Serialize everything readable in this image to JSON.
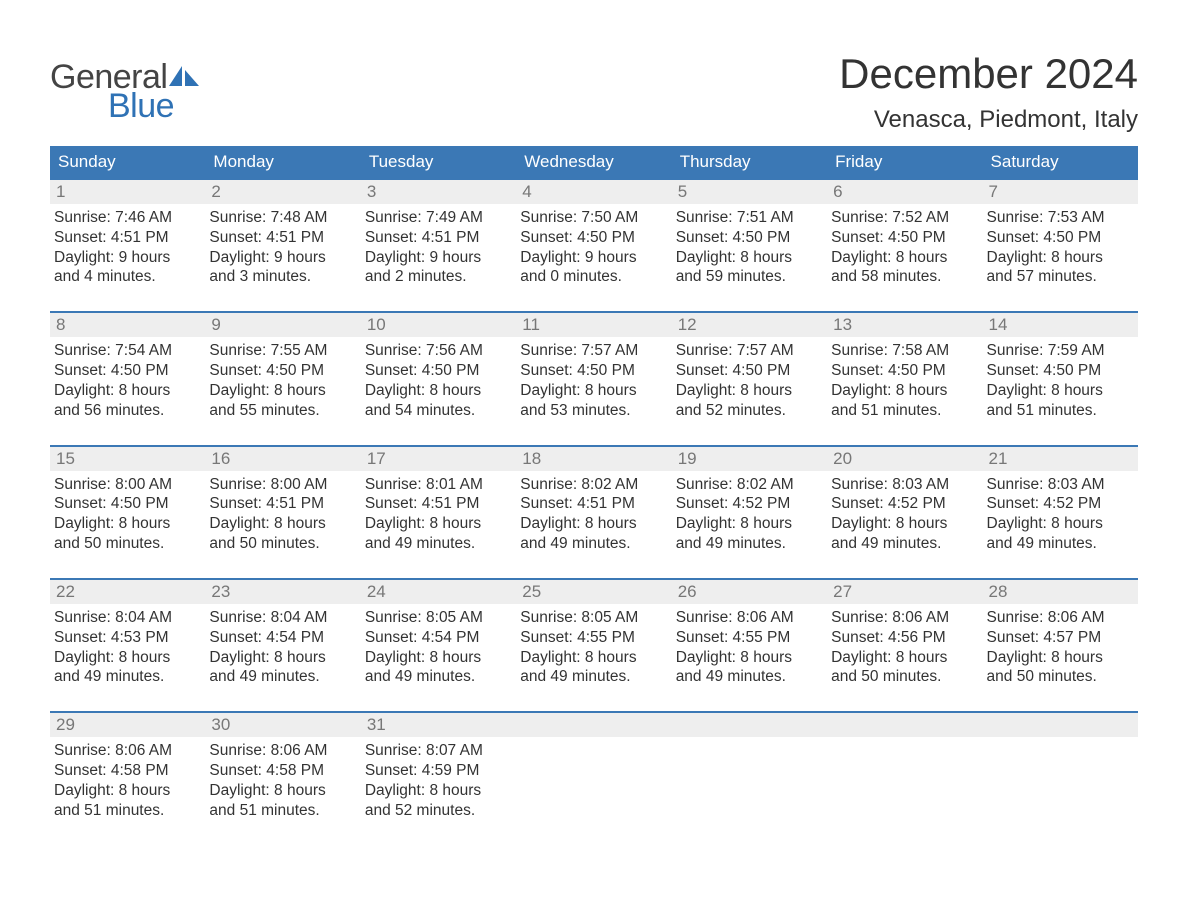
{
  "logo": {
    "text1": "General",
    "text2": "Blue",
    "sail_color": "#2f72b5"
  },
  "colors": {
    "header_bg": "#3b78b5",
    "header_text": "#ffffff",
    "daynum_bg": "#eeeeee",
    "daynum_text": "#777777",
    "body_text": "#333333",
    "week_divider": "#3b78b5",
    "page_bg": "#ffffff"
  },
  "title": "December 2024",
  "location": "Venasca, Piedmont, Italy",
  "weekdays": [
    "Sunday",
    "Monday",
    "Tuesday",
    "Wednesday",
    "Thursday",
    "Friday",
    "Saturday"
  ],
  "weeks": [
    [
      {
        "n": "1",
        "sunrise": "Sunrise: 7:46 AM",
        "sunset": "Sunset: 4:51 PM",
        "d1": "Daylight: 9 hours",
        "d2": "and 4 minutes."
      },
      {
        "n": "2",
        "sunrise": "Sunrise: 7:48 AM",
        "sunset": "Sunset: 4:51 PM",
        "d1": "Daylight: 9 hours",
        "d2": "and 3 minutes."
      },
      {
        "n": "3",
        "sunrise": "Sunrise: 7:49 AM",
        "sunset": "Sunset: 4:51 PM",
        "d1": "Daylight: 9 hours",
        "d2": "and 2 minutes."
      },
      {
        "n": "4",
        "sunrise": "Sunrise: 7:50 AM",
        "sunset": "Sunset: 4:50 PM",
        "d1": "Daylight: 9 hours",
        "d2": "and 0 minutes."
      },
      {
        "n": "5",
        "sunrise": "Sunrise: 7:51 AM",
        "sunset": "Sunset: 4:50 PM",
        "d1": "Daylight: 8 hours",
        "d2": "and 59 minutes."
      },
      {
        "n": "6",
        "sunrise": "Sunrise: 7:52 AM",
        "sunset": "Sunset: 4:50 PM",
        "d1": "Daylight: 8 hours",
        "d2": "and 58 minutes."
      },
      {
        "n": "7",
        "sunrise": "Sunrise: 7:53 AM",
        "sunset": "Sunset: 4:50 PM",
        "d1": "Daylight: 8 hours",
        "d2": "and 57 minutes."
      }
    ],
    [
      {
        "n": "8",
        "sunrise": "Sunrise: 7:54 AM",
        "sunset": "Sunset: 4:50 PM",
        "d1": "Daylight: 8 hours",
        "d2": "and 56 minutes."
      },
      {
        "n": "9",
        "sunrise": "Sunrise: 7:55 AM",
        "sunset": "Sunset: 4:50 PM",
        "d1": "Daylight: 8 hours",
        "d2": "and 55 minutes."
      },
      {
        "n": "10",
        "sunrise": "Sunrise: 7:56 AM",
        "sunset": "Sunset: 4:50 PM",
        "d1": "Daylight: 8 hours",
        "d2": "and 54 minutes."
      },
      {
        "n": "11",
        "sunrise": "Sunrise: 7:57 AM",
        "sunset": "Sunset: 4:50 PM",
        "d1": "Daylight: 8 hours",
        "d2": "and 53 minutes."
      },
      {
        "n": "12",
        "sunrise": "Sunrise: 7:57 AM",
        "sunset": "Sunset: 4:50 PM",
        "d1": "Daylight: 8 hours",
        "d2": "and 52 minutes."
      },
      {
        "n": "13",
        "sunrise": "Sunrise: 7:58 AM",
        "sunset": "Sunset: 4:50 PM",
        "d1": "Daylight: 8 hours",
        "d2": "and 51 minutes."
      },
      {
        "n": "14",
        "sunrise": "Sunrise: 7:59 AM",
        "sunset": "Sunset: 4:50 PM",
        "d1": "Daylight: 8 hours",
        "d2": "and 51 minutes."
      }
    ],
    [
      {
        "n": "15",
        "sunrise": "Sunrise: 8:00 AM",
        "sunset": "Sunset: 4:50 PM",
        "d1": "Daylight: 8 hours",
        "d2": "and 50 minutes."
      },
      {
        "n": "16",
        "sunrise": "Sunrise: 8:00 AM",
        "sunset": "Sunset: 4:51 PM",
        "d1": "Daylight: 8 hours",
        "d2": "and 50 minutes."
      },
      {
        "n": "17",
        "sunrise": "Sunrise: 8:01 AM",
        "sunset": "Sunset: 4:51 PM",
        "d1": "Daylight: 8 hours",
        "d2": "and 49 minutes."
      },
      {
        "n": "18",
        "sunrise": "Sunrise: 8:02 AM",
        "sunset": "Sunset: 4:51 PM",
        "d1": "Daylight: 8 hours",
        "d2": "and 49 minutes."
      },
      {
        "n": "19",
        "sunrise": "Sunrise: 8:02 AM",
        "sunset": "Sunset: 4:52 PM",
        "d1": "Daylight: 8 hours",
        "d2": "and 49 minutes."
      },
      {
        "n": "20",
        "sunrise": "Sunrise: 8:03 AM",
        "sunset": "Sunset: 4:52 PM",
        "d1": "Daylight: 8 hours",
        "d2": "and 49 minutes."
      },
      {
        "n": "21",
        "sunrise": "Sunrise: 8:03 AM",
        "sunset": "Sunset: 4:52 PM",
        "d1": "Daylight: 8 hours",
        "d2": "and 49 minutes."
      }
    ],
    [
      {
        "n": "22",
        "sunrise": "Sunrise: 8:04 AM",
        "sunset": "Sunset: 4:53 PM",
        "d1": "Daylight: 8 hours",
        "d2": "and 49 minutes."
      },
      {
        "n": "23",
        "sunrise": "Sunrise: 8:04 AM",
        "sunset": "Sunset: 4:54 PM",
        "d1": "Daylight: 8 hours",
        "d2": "and 49 minutes."
      },
      {
        "n": "24",
        "sunrise": "Sunrise: 8:05 AM",
        "sunset": "Sunset: 4:54 PM",
        "d1": "Daylight: 8 hours",
        "d2": "and 49 minutes."
      },
      {
        "n": "25",
        "sunrise": "Sunrise: 8:05 AM",
        "sunset": "Sunset: 4:55 PM",
        "d1": "Daylight: 8 hours",
        "d2": "and 49 minutes."
      },
      {
        "n": "26",
        "sunrise": "Sunrise: 8:06 AM",
        "sunset": "Sunset: 4:55 PM",
        "d1": "Daylight: 8 hours",
        "d2": "and 49 minutes."
      },
      {
        "n": "27",
        "sunrise": "Sunrise: 8:06 AM",
        "sunset": "Sunset: 4:56 PM",
        "d1": "Daylight: 8 hours",
        "d2": "and 50 minutes."
      },
      {
        "n": "28",
        "sunrise": "Sunrise: 8:06 AM",
        "sunset": "Sunset: 4:57 PM",
        "d1": "Daylight: 8 hours",
        "d2": "and 50 minutes."
      }
    ],
    [
      {
        "n": "29",
        "sunrise": "Sunrise: 8:06 AM",
        "sunset": "Sunset: 4:58 PM",
        "d1": "Daylight: 8 hours",
        "d2": "and 51 minutes."
      },
      {
        "n": "30",
        "sunrise": "Sunrise: 8:06 AM",
        "sunset": "Sunset: 4:58 PM",
        "d1": "Daylight: 8 hours",
        "d2": "and 51 minutes."
      },
      {
        "n": "31",
        "sunrise": "Sunrise: 8:07 AM",
        "sunset": "Sunset: 4:59 PM",
        "d1": "Daylight: 8 hours",
        "d2": "and 52 minutes."
      },
      {
        "empty": true
      },
      {
        "empty": true
      },
      {
        "empty": true
      },
      {
        "empty": true
      }
    ]
  ]
}
